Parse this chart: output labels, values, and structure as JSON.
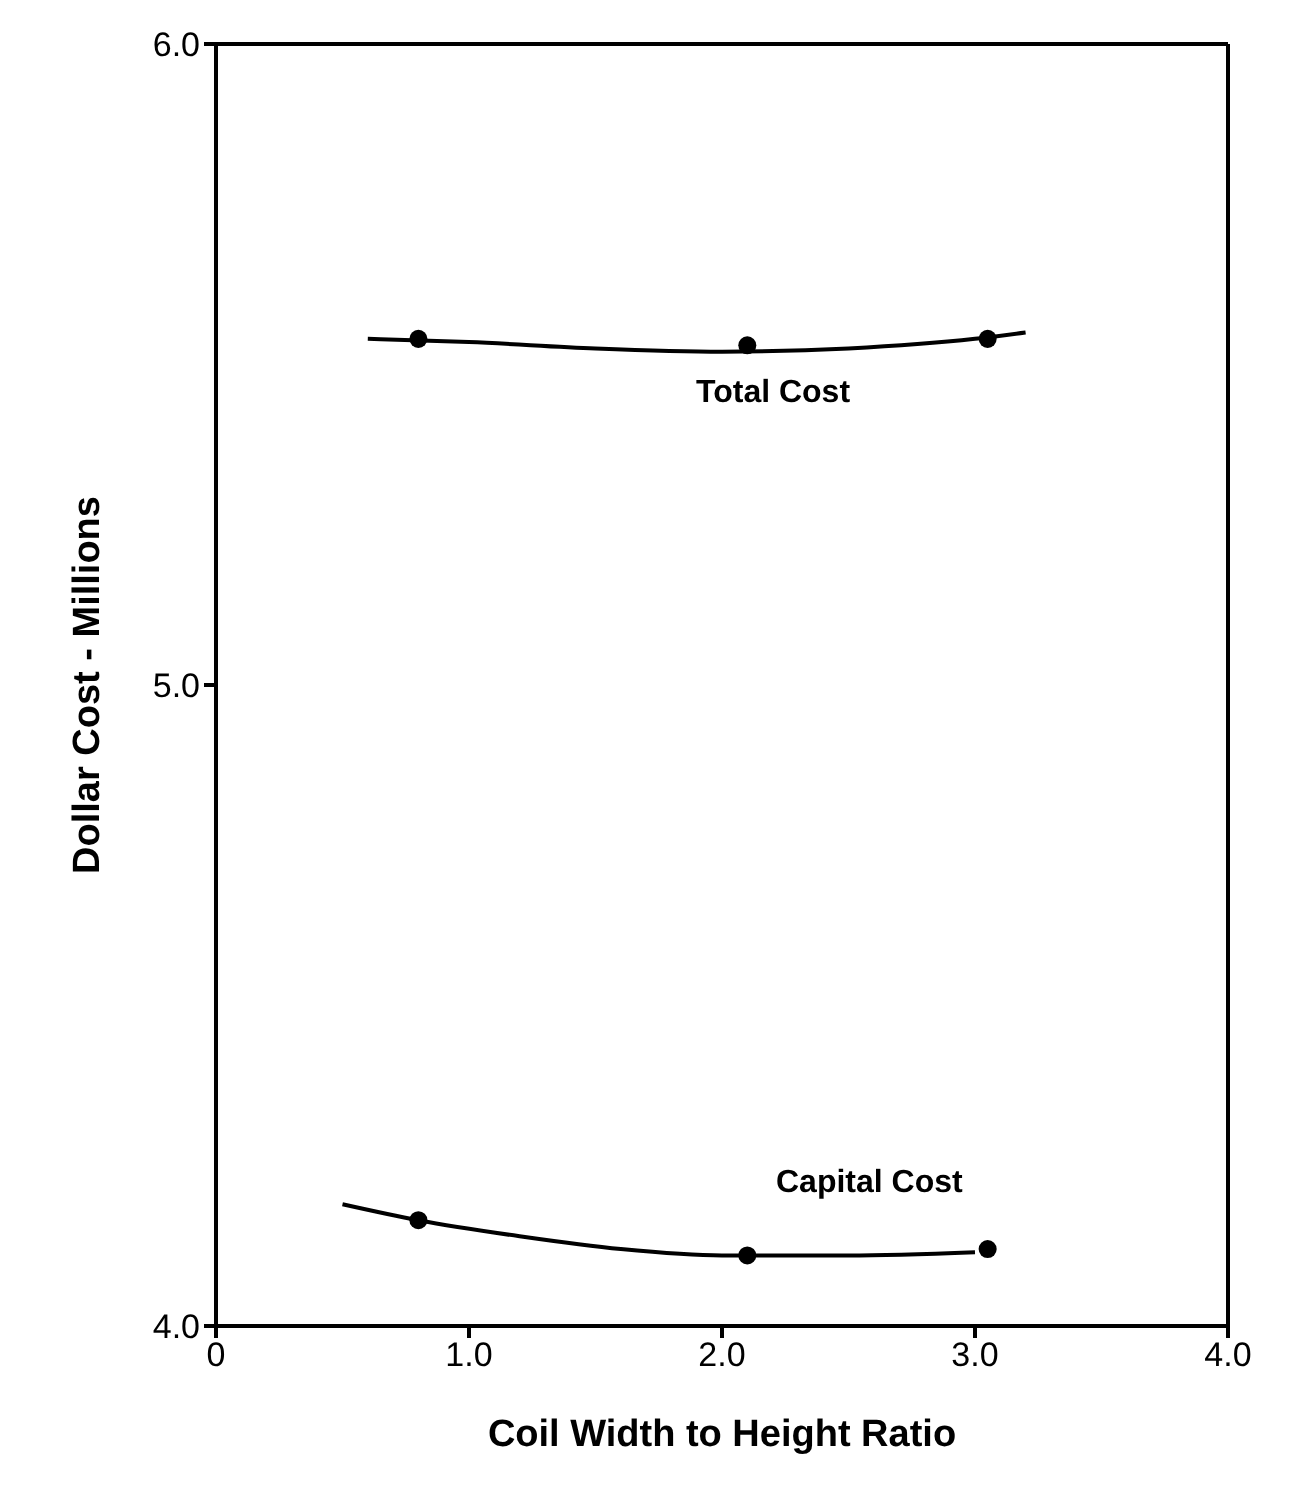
{
  "chart_data": {
    "type": "scatter",
    "xlabel": "Coil Width to Height Ratio",
    "ylabel": "Dollar Cost - Millions",
    "xlim": [
      0,
      4
    ],
    "xticks": [
      0,
      {
        "value": 1,
        "label": "1.0"
      },
      {
        "value": 2,
        "label": "2.0"
      },
      {
        "value": 3,
        "label": "3.0"
      },
      {
        "value": 4,
        "label": "4.0"
      }
    ],
    "ylim": [
      4,
      6
    ],
    "yticks": [
      {
        "value": 4,
        "label": "4.0"
      },
      {
        "value": 5,
        "label": "5.0"
      },
      {
        "value": 6,
        "label": "6.0"
      }
    ],
    "legend": false,
    "marker": "circle",
    "series": [
      {
        "color": "#000000",
        "x": [
          0.8,
          2.1,
          3.05
        ],
        "values": [
          5.54,
          5.53,
          5.54
        ]
      },
      {
        "type": "line",
        "color": "#000000",
        "marker": "none",
        "x": [
          0.6,
          1.0,
          1.5,
          2.0,
          2.5,
          3.0,
          3.2
        ],
        "values": [
          5.54,
          5.535,
          5.525,
          5.52,
          5.525,
          5.54,
          5.55
        ]
      },
      {
        "color": "#000000",
        "x": [
          0.8,
          2.1,
          3.05
        ],
        "values": [
          4.165,
          4.11,
          4.12
        ]
      },
      {
        "type": "line",
        "color": "#000000",
        "marker": "none",
        "x": [
          0.5,
          0.8,
          1.2,
          1.6,
          2.0,
          2.5,
          3.0
        ],
        "values": [
          4.19,
          4.165,
          4.14,
          4.12,
          4.11,
          4.11,
          4.115
        ]
      }
    ],
    "annotations": [
      "Total Cost",
      "Capital Cost"
    ]
  }
}
